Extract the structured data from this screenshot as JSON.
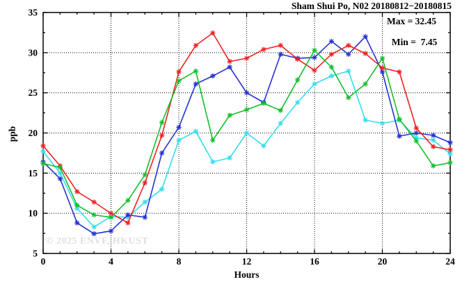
{
  "chart_data": {
    "type": "line",
    "title": "Sham Shui Po, N02 20180812−20180815",
    "xlabel": "Hours",
    "ylabel": "ppb",
    "xlim": [
      0,
      24
    ],
    "ylim": [
      5,
      35
    ],
    "x_ticks": [
      0,
      4,
      8,
      12,
      16,
      20,
      24
    ],
    "y_ticks": [
      5,
      10,
      15,
      20,
      25,
      30,
      35
    ],
    "x_minor_step": 1,
    "y_minor_step": 2.5,
    "grid_x": [
      4,
      8,
      12,
      16,
      20
    ],
    "grid_y": [
      10,
      15,
      20,
      25,
      30
    ],
    "legend": "none",
    "marker": "asterisk",
    "x": [
      0,
      1,
      2,
      3,
      4,
      5,
      6,
      7,
      8,
      9,
      10,
      11,
      12,
      13,
      14,
      15,
      16,
      17,
      18,
      19,
      20,
      21,
      22,
      23,
      24
    ],
    "series": [
      {
        "name": "cyan",
        "color": "#35dcec",
        "values": [
          17.7,
          15.0,
          10.6,
          8.3,
          9.6,
          9.5,
          11.4,
          13.0,
          19.1,
          20.2,
          16.4,
          16.9,
          20.0,
          18.4,
          21.2,
          23.8,
          26.1,
          27.1,
          27.7,
          21.6,
          21.2,
          21.6,
          19.4,
          19.1,
          17.4
        ]
      },
      {
        "name": "blue",
        "color": "#2430cf",
        "values": [
          16.4,
          14.3,
          8.8,
          7.45,
          7.8,
          9.8,
          9.5,
          17.5,
          20.7,
          26.1,
          27.1,
          28.2,
          25.0,
          23.8,
          29.8,
          29.3,
          29.4,
          31.4,
          29.8,
          32.0,
          27.6,
          19.6,
          20.0,
          19.7,
          18.8
        ]
      },
      {
        "name": "red",
        "color": "#f02020",
        "values": [
          18.4,
          15.9,
          12.7,
          11.4,
          10.0,
          8.8,
          13.8,
          19.7,
          27.6,
          30.9,
          32.45,
          28.9,
          29.3,
          30.4,
          30.9,
          29.2,
          27.8,
          29.8,
          30.9,
          29.9,
          28.1,
          27.6,
          20.6,
          18.3,
          17.9
        ]
      },
      {
        "name": "green",
        "color": "#12bf2a",
        "values": [
          16.2,
          15.7,
          11.0,
          9.8,
          9.5,
          11.6,
          14.8,
          21.3,
          26.5,
          27.7,
          19.1,
          22.2,
          22.9,
          23.7,
          22.8,
          26.6,
          30.3,
          28.2,
          24.4,
          26.1,
          29.3,
          21.7,
          19.0,
          15.9,
          16.3
        ]
      }
    ],
    "annotations": {
      "max_label": "Max = 32.45",
      "min_label": "Min =  7.45"
    },
    "watermark": "© 2025 ENVF, HKUST"
  }
}
